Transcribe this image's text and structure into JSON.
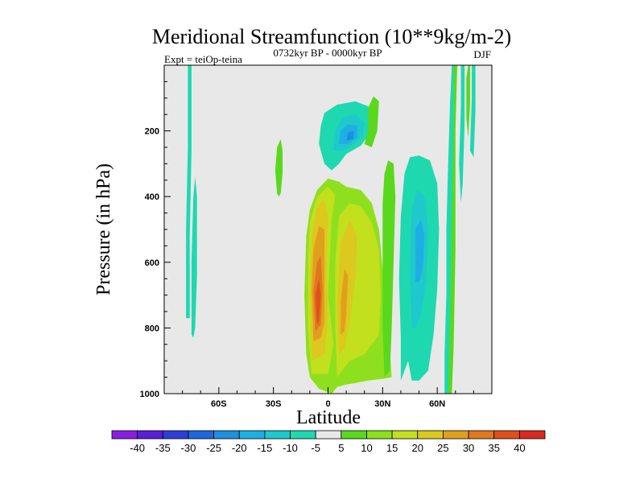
{
  "chart_data": {
    "type": "heatmap",
    "title": "Meridional Streamfunction (10**9kg/m-2)",
    "subtitle_left": "Expt = teiOp-teina",
    "subtitle_center": "0732kyr BP - 0000kyr BP",
    "subtitle_right": "DJF",
    "xlabel": "Latitude",
    "ylabel": "Pressure (in hPa)",
    "xlim": [
      -90,
      90
    ],
    "ylim": [
      1000,
      0
    ],
    "xticks": [
      {
        "value": -60,
        "label": "60S"
      },
      {
        "value": -30,
        "label": "30S"
      },
      {
        "value": 0,
        "label": "0"
      },
      {
        "value": 30,
        "label": "30N"
      },
      {
        "value": 60,
        "label": "60N"
      }
    ],
    "yticks": [
      {
        "value": 200,
        "label": "200"
      },
      {
        "value": 400,
        "label": "400"
      },
      {
        "value": 600,
        "label": "600"
      },
      {
        "value": 800,
        "label": "800"
      },
      {
        "value": 1000,
        "label": "1000"
      }
    ],
    "colorbar": {
      "levels": [
        -40,
        -35,
        -30,
        -25,
        -20,
        -15,
        -10,
        -5,
        5,
        10,
        15,
        20,
        25,
        30,
        35,
        40
      ],
      "colors": [
        "#8a1ee0",
        "#5a1ed6",
        "#2e3ed8",
        "#1e68dc",
        "#1e90e0",
        "#1eaee4",
        "#1ec8cc",
        "#1ed8b0",
        "#e8e8e8",
        "#5ad81e",
        "#8ee01e",
        "#c2e01e",
        "#dcc81e",
        "#e0a01e",
        "#e0781e",
        "#e0501e",
        "#d82a1e"
      ],
      "background": "#e8e8e8"
    },
    "regions": [
      {
        "name": "nh-subtropical-max",
        "level": 10,
        "pts": [
          [
            2,
            1000
          ],
          [
            -5,
            985
          ],
          [
            -10,
            950
          ],
          [
            -12,
            880
          ],
          [
            -13,
            700
          ],
          [
            -12,
            520
          ],
          [
            -10,
            440
          ],
          [
            -6,
            380
          ],
          [
            0,
            345
          ],
          [
            6,
            355
          ],
          [
            10,
            370
          ],
          [
            18,
            380
          ],
          [
            24,
            420
          ],
          [
            28,
            500
          ],
          [
            30,
            620
          ],
          [
            32,
            760
          ],
          [
            34,
            880
          ],
          [
            35,
            950
          ],
          [
            30,
            955
          ],
          [
            22,
            960
          ],
          [
            15,
            968
          ],
          [
            10,
            972
          ],
          [
            5,
            980
          ]
        ]
      },
      {
        "name": "nh-max-15",
        "level": 15,
        "pts": [
          [
            -9,
            940
          ],
          [
            -11,
            800
          ],
          [
            -11,
            600
          ],
          [
            -10,
            480
          ],
          [
            -6,
            400
          ],
          [
            0,
            370
          ],
          [
            4,
            395
          ],
          [
            2,
            470
          ],
          [
            0,
            700
          ],
          [
            3,
            850
          ],
          [
            0,
            940
          ]
        ]
      },
      {
        "name": "nh-max-15b",
        "level": 15,
        "pts": [
          [
            5,
            950
          ],
          [
            4,
            800
          ],
          [
            4,
            600
          ],
          [
            6,
            460
          ],
          [
            12,
            420
          ],
          [
            18,
            430
          ],
          [
            24,
            480
          ],
          [
            28,
            560
          ],
          [
            29,
            700
          ],
          [
            28,
            820
          ],
          [
            20,
            880
          ],
          [
            12,
            900
          ]
        ]
      },
      {
        "name": "core-20",
        "level": 20,
        "pts": [
          [
            -9,
            900
          ],
          [
            -10,
            700
          ],
          [
            -9,
            520
          ],
          [
            -6,
            430
          ],
          [
            -2,
            410
          ],
          [
            0,
            470
          ],
          [
            -1,
            600
          ],
          [
            0,
            760
          ],
          [
            -2,
            880
          ]
        ]
      },
      {
        "name": "core-20b",
        "level": 20,
        "pts": [
          [
            6,
            880
          ],
          [
            5,
            720
          ],
          [
            7,
            540
          ],
          [
            12,
            470
          ],
          [
            16,
            520
          ],
          [
            15,
            650
          ],
          [
            12,
            780
          ],
          [
            9,
            860
          ]
        ]
      },
      {
        "name": "core-25",
        "level": 25,
        "pts": [
          [
            -8,
            840
          ],
          [
            -9,
            680
          ],
          [
            -8,
            560
          ],
          [
            -5,
            490
          ],
          [
            -2,
            500
          ],
          [
            -2,
            640
          ],
          [
            -2,
            780
          ],
          [
            -4,
            830
          ]
        ]
      },
      {
        "name": "core-25b",
        "level": 25,
        "pts": [
          [
            7,
            820
          ],
          [
            7,
            720
          ],
          [
            9,
            620
          ],
          [
            11,
            640
          ],
          [
            10,
            760
          ],
          [
            9,
            810
          ]
        ]
      },
      {
        "name": "core-30",
        "level": 30,
        "pts": [
          [
            -7,
            810
          ],
          [
            -8,
            690
          ],
          [
            -6,
            600
          ],
          [
            -4,
            580
          ],
          [
            -3,
            680
          ],
          [
            -4,
            790
          ]
        ]
      },
      {
        "name": "core-35",
        "level": 35,
        "pts": [
          [
            -6,
            790
          ],
          [
            -7,
            700
          ],
          [
            -5,
            650
          ],
          [
            -4,
            700
          ],
          [
            -5,
            780
          ]
        ]
      },
      {
        "name": "upper-neg-5",
        "level": -5,
        "pts": [
          [
            -5,
            240
          ],
          [
            -4,
            185
          ],
          [
            -2,
            145
          ],
          [
            5,
            120
          ],
          [
            15,
            110
          ],
          [
            22,
            125
          ],
          [
            25,
            170
          ],
          [
            22,
            215
          ],
          [
            18,
            245
          ],
          [
            10,
            270
          ],
          [
            6,
            300
          ],
          [
            2,
            320
          ],
          [
            -2,
            300
          ]
        ]
      },
      {
        "name": "upper-neg-10",
        "level": -10,
        "pts": [
          [
            3,
            260
          ],
          [
            4,
            200
          ],
          [
            8,
            160
          ],
          [
            15,
            150
          ],
          [
            20,
            175
          ],
          [
            19,
            215
          ],
          [
            14,
            240
          ],
          [
            8,
            260
          ]
        ]
      },
      {
        "name": "upper-neg-15",
        "level": -15,
        "pts": [
          [
            6,
            240
          ],
          [
            7,
            200
          ],
          [
            11,
            180
          ],
          [
            16,
            185
          ],
          [
            16,
            220
          ],
          [
            11,
            240
          ]
        ]
      },
      {
        "name": "upper-neg-20",
        "level": -20,
        "pts": [
          [
            10,
            230
          ],
          [
            11,
            205
          ],
          [
            14,
            200
          ],
          [
            14,
            225
          ]
        ]
      },
      {
        "name": "upper-pos-sliver",
        "level": 5,
        "pts": [
          [
            22,
            130
          ],
          [
            25,
            95
          ],
          [
            28,
            110
          ],
          [
            27,
            200
          ],
          [
            24,
            250
          ],
          [
            20,
            240
          ],
          [
            22,
            200
          ]
        ]
      },
      {
        "name": "nh-ferrel-neg-5",
        "level": -5,
        "pts": [
          [
            40,
            960
          ],
          [
            40,
            830
          ],
          [
            39,
            650
          ],
          [
            40,
            460
          ],
          [
            42,
            330
          ],
          [
            45,
            280
          ],
          [
            50,
            275
          ],
          [
            56,
            290
          ],
          [
            60,
            360
          ],
          [
            61,
            500
          ],
          [
            60,
            680
          ],
          [
            58,
            820
          ],
          [
            55,
            930
          ],
          [
            50,
            960
          ],
          [
            46,
            960
          ],
          [
            44,
            900
          ]
        ]
      },
      {
        "name": "nh-ferrel-neg-10",
        "level": -10,
        "pts": [
          [
            46,
            800
          ],
          [
            45,
            600
          ],
          [
            46,
            440
          ],
          [
            49,
            380
          ],
          [
            53,
            400
          ],
          [
            55,
            500
          ],
          [
            54,
            650
          ],
          [
            51,
            760
          ],
          [
            48,
            800
          ]
        ]
      },
      {
        "name": "nh-ferrel-neg-15",
        "level": -15,
        "pts": [
          [
            48,
            660
          ],
          [
            48,
            500
          ],
          [
            51,
            470
          ],
          [
            53,
            520
          ],
          [
            52,
            620
          ],
          [
            50,
            660
          ]
        ]
      },
      {
        "name": "trop-pos-5",
        "level": 5,
        "pts": [
          [
            30,
            420
          ],
          [
            31,
            330
          ],
          [
            33,
            290
          ],
          [
            36,
            300
          ],
          [
            37,
            400
          ],
          [
            36,
            600
          ],
          [
            35,
            800
          ],
          [
            34,
            930
          ],
          [
            31,
            950
          ],
          [
            30,
            800
          ]
        ]
      },
      {
        "name": "polar-neg-strip",
        "level": -5,
        "pts": [
          [
            64,
            1000
          ],
          [
            64,
            880
          ],
          [
            65,
            700
          ],
          [
            65,
            500
          ],
          [
            66,
            300
          ],
          [
            67,
            120
          ],
          [
            68,
            0
          ],
          [
            70,
            0
          ],
          [
            70,
            120
          ],
          [
            69,
            300
          ],
          [
            68,
            560
          ],
          [
            68,
            780
          ],
          [
            67,
            920
          ],
          [
            66,
            1000
          ]
        ]
      },
      {
        "name": "polar-pos-strip",
        "level": 5,
        "pts": [
          [
            66,
            1000
          ],
          [
            67,
            760
          ],
          [
            68,
            420
          ],
          [
            69,
            120
          ],
          [
            69,
            0
          ],
          [
            71,
            0
          ],
          [
            70,
            200
          ],
          [
            70,
            560
          ],
          [
            69,
            860
          ],
          [
            68,
            1000
          ]
        ]
      },
      {
        "name": "polar-neg-far",
        "level": -5,
        "pts": [
          [
            72,
            300
          ],
          [
            73,
            120
          ],
          [
            73,
            0
          ],
          [
            75,
            0
          ],
          [
            75,
            180
          ],
          [
            74,
            360
          ],
          [
            73,
            420
          ]
        ]
      },
      {
        "name": "polar-neg-far2",
        "level": -5,
        "pts": [
          [
            78,
            260
          ],
          [
            79,
            100
          ],
          [
            79,
            0
          ],
          [
            81,
            0
          ],
          [
            81,
            140
          ],
          [
            80,
            280
          ]
        ]
      },
      {
        "name": "polar-pos-far",
        "level": 5,
        "pts": [
          [
            76,
            160
          ],
          [
            76,
            40
          ],
          [
            77,
            0
          ],
          [
            78,
            0
          ],
          [
            78,
            120
          ],
          [
            77,
            220
          ]
        ]
      },
      {
        "name": "sh-neg-strip-upper",
        "level": -5,
        "pts": [
          [
            -78,
            770
          ],
          [
            -78,
            500
          ],
          [
            -77,
            250
          ],
          [
            -77,
            0
          ],
          [
            -75,
            0
          ],
          [
            -75,
            260
          ],
          [
            -76,
            520
          ],
          [
            -76,
            770
          ]
        ]
      },
      {
        "name": "sh-neg-strip-lower",
        "level": -5,
        "pts": [
          [
            -75,
            820
          ],
          [
            -75,
            600
          ],
          [
            -74,
            400
          ],
          [
            -73,
            340
          ],
          [
            -72,
            400
          ],
          [
            -72,
            640
          ],
          [
            -73,
            800
          ],
          [
            -74,
            830
          ]
        ]
      },
      {
        "name": "sh-pos-blob",
        "level": 5,
        "pts": [
          [
            -28,
            390
          ],
          [
            -29,
            320
          ],
          [
            -28,
            250
          ],
          [
            -26,
            225
          ],
          [
            -25,
            260
          ],
          [
            -25,
            330
          ],
          [
            -26,
            390
          ],
          [
            -27,
            400
          ]
        ]
      }
    ]
  }
}
